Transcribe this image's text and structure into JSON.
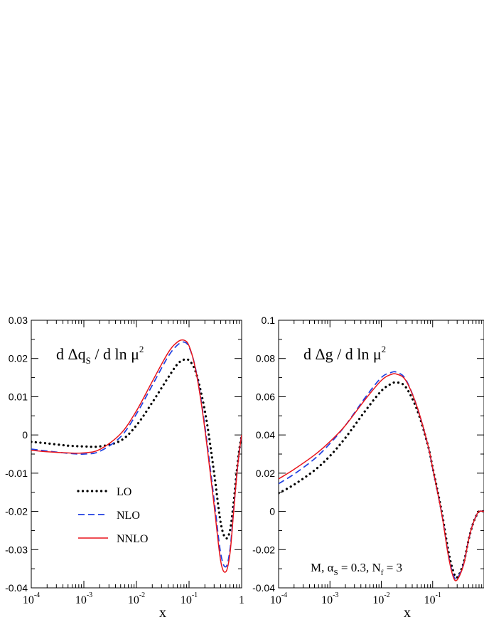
{
  "chart_data": [
    {
      "type": "line",
      "title_parts": {
        "pre": "d Δq",
        "sub": "S",
        "mid": " / d ln μ",
        "sup": "2"
      },
      "xlabel": "x",
      "xscale": "log",
      "xlim": [
        0.0001,
        1
      ],
      "ylim": [
        -0.04,
        0.03
      ],
      "xticks": [
        {
          "base": "10",
          "exp": "-4"
        },
        {
          "base": "10",
          "exp": "-3"
        },
        {
          "base": "10",
          "exp": "-2"
        },
        {
          "base": "10",
          "exp": "-1"
        },
        {
          "base": "1",
          "exp": ""
        }
      ],
      "yticks": [
        "-0.04",
        "-0.03",
        "-0.02",
        "-0.01",
        "0",
        "0.01",
        "0.02",
        "0.03"
      ],
      "legend": {
        "position": "lower-left",
        "entries": [
          "LO",
          "NLO",
          "NNLO"
        ]
      },
      "series": [
        {
          "name": "LO",
          "style": "dotted",
          "color": "#000000",
          "x": [
            0.0001,
            0.0002,
            0.0005,
            0.001,
            0.002,
            0.005,
            0.01,
            0.02,
            0.04,
            0.06,
            0.08,
            0.1,
            0.13,
            0.17,
            0.22,
            0.3,
            0.4,
            0.5,
            0.6,
            0.7,
            0.8,
            0.9,
            1.0
          ],
          "y": [
            -0.0018,
            -0.0022,
            -0.0028,
            -0.003,
            -0.003,
            -0.0015,
            0.0025,
            0.0085,
            0.015,
            0.0185,
            0.0197,
            0.0195,
            0.017,
            0.011,
            0.003,
            -0.01,
            -0.023,
            -0.027,
            -0.025,
            -0.018,
            -0.01,
            -0.004,
            0.0
          ]
        },
        {
          "name": "NLO",
          "style": "dashed",
          "color": "#1f3fe0",
          "x": [
            0.0001,
            0.0002,
            0.0005,
            0.001,
            0.002,
            0.005,
            0.01,
            0.02,
            0.04,
            0.06,
            0.08,
            0.1,
            0.13,
            0.17,
            0.22,
            0.3,
            0.4,
            0.5,
            0.6,
            0.7,
            0.8,
            0.9,
            1.0
          ],
          "y": [
            -0.0037,
            -0.0042,
            -0.0048,
            -0.005,
            -0.0043,
            -0.0005,
            0.0055,
            0.013,
            0.0205,
            0.0235,
            0.0243,
            0.023,
            0.018,
            0.009,
            -0.002,
            -0.017,
            -0.031,
            -0.0345,
            -0.03,
            -0.02,
            -0.011,
            -0.0045,
            0.0
          ]
        },
        {
          "name": "NNLO",
          "style": "solid",
          "color": "#e8141b",
          "x": [
            0.0001,
            0.0002,
            0.0005,
            0.001,
            0.002,
            0.005,
            0.01,
            0.02,
            0.04,
            0.06,
            0.08,
            0.1,
            0.13,
            0.17,
            0.22,
            0.3,
            0.4,
            0.5,
            0.6,
            0.7,
            0.8,
            0.9,
            1.0
          ],
          "y": [
            -0.004,
            -0.0044,
            -0.0047,
            -0.0047,
            -0.0038,
            0.0003,
            0.0063,
            0.014,
            0.0215,
            0.0243,
            0.0248,
            0.0233,
            0.0178,
            0.0085,
            -0.003,
            -0.0185,
            -0.033,
            -0.0358,
            -0.031,
            -0.0205,
            -0.011,
            -0.0045,
            0.0
          ]
        }
      ]
    },
    {
      "type": "line",
      "title_parts": {
        "pre": "d Δg / d ln μ",
        "sub": "",
        "mid": "",
        "sup": "2"
      },
      "xlabel": "x",
      "xscale": "log",
      "xlim": [
        0.0001,
        1
      ],
      "ylim": [
        -0.04,
        0.1
      ],
      "xticks": [
        {
          "base": "10",
          "exp": "-4"
        },
        {
          "base": "10",
          "exp": "-3"
        },
        {
          "base": "10",
          "exp": "-2"
        },
        {
          "base": "10",
          "exp": "-1"
        }
      ],
      "yticks": [
        "-0.04",
        "-0.02",
        "0",
        "0.02",
        "0.04",
        "0.06",
        "0.08",
        "0.1"
      ],
      "annotation": {
        "text_pre": "M,  α",
        "sub1": "S",
        "text_mid": " = 0.3,  N",
        "sub2": "f",
        "text_post": " = 3"
      },
      "series": [
        {
          "name": "LO",
          "style": "dotted",
          "color": "#000000",
          "x": [
            0.0001,
            0.0002,
            0.0005,
            0.001,
            0.002,
            0.005,
            0.01,
            0.015,
            0.02,
            0.03,
            0.05,
            0.08,
            0.1,
            0.15,
            0.2,
            0.25,
            0.3,
            0.4,
            0.5,
            0.6,
            0.7,
            0.8,
            1.0
          ],
          "y": [
            0.0095,
            0.014,
            0.0215,
            0.029,
            0.0385,
            0.053,
            0.063,
            0.0665,
            0.0675,
            0.065,
            0.053,
            0.035,
            0.023,
            0.0,
            -0.02,
            -0.031,
            -0.0345,
            -0.027,
            -0.015,
            -0.007,
            -0.0025,
            0.0,
            0.0
          ]
        },
        {
          "name": "NLO",
          "style": "dashed",
          "color": "#1f3fe0",
          "x": [
            0.0001,
            0.0002,
            0.0005,
            0.001,
            0.002,
            0.005,
            0.01,
            0.015,
            0.02,
            0.03,
            0.05,
            0.08,
            0.1,
            0.15,
            0.2,
            0.25,
            0.3,
            0.4,
            0.5,
            0.6,
            0.7,
            0.8,
            1.0
          ],
          "y": [
            0.0145,
            0.0195,
            0.0275,
            0.0355,
            0.045,
            0.06,
            0.07,
            0.0725,
            0.0728,
            0.069,
            0.0545,
            0.035,
            0.0225,
            -0.001,
            -0.022,
            -0.033,
            -0.035,
            -0.0275,
            -0.015,
            -0.007,
            -0.0025,
            0.0,
            0.0
          ]
        },
        {
          "name": "NNLO",
          "style": "solid",
          "color": "#e8141b",
          "x": [
            0.0001,
            0.0002,
            0.0005,
            0.001,
            0.002,
            0.005,
            0.01,
            0.015,
            0.02,
            0.03,
            0.05,
            0.08,
            0.1,
            0.15,
            0.2,
            0.25,
            0.3,
            0.4,
            0.5,
            0.6,
            0.7,
            0.8,
            1.0
          ],
          "y": [
            0.017,
            0.022,
            0.0295,
            0.0365,
            0.045,
            0.059,
            0.0685,
            0.0715,
            0.0718,
            0.0685,
            0.0545,
            0.0352,
            0.0228,
            -0.0012,
            -0.0225,
            -0.034,
            -0.0358,
            -0.028,
            -0.015,
            -0.007,
            -0.0025,
            0.0,
            0.0
          ]
        }
      ]
    }
  ]
}
